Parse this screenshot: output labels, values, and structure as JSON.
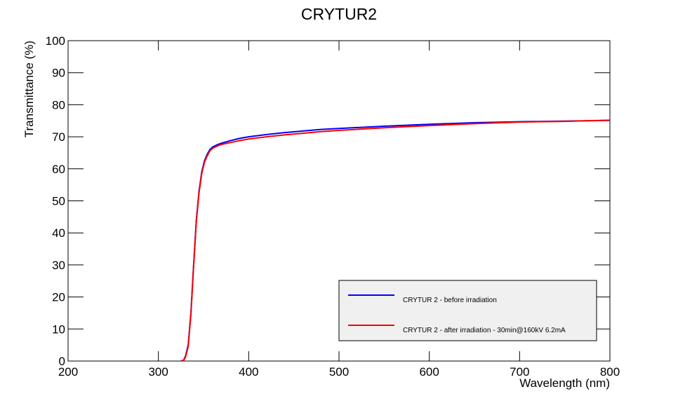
{
  "chart_data": {
    "type": "line",
    "title": "CRYTUR2",
    "x_label": "Wavelength (nm)",
    "y_label": "Transmittance (%)",
    "x": [
      325,
      328,
      330,
      333,
      336,
      339,
      342,
      345,
      348,
      351,
      354,
      357,
      360,
      365,
      370,
      380,
      390,
      400,
      420,
      440,
      460,
      480,
      500,
      550,
      600,
      650,
      700,
      750,
      800
    ],
    "series": [
      {
        "name": "CRYTUR 2 - before irradiation",
        "color": "#0000ff",
        "values": [
          0,
          0.3,
          1.5,
          5,
          15,
          30,
          44,
          53,
          59,
          62.5,
          64.5,
          66,
          66.8,
          67.5,
          68,
          68.8,
          69.5,
          70,
          70.7,
          71.3,
          71.8,
          72.3,
          72.6,
          73.3,
          73.9,
          74.4,
          74.7,
          74.9,
          75.1
        ]
      },
      {
        "name": "CRYTUR 2 - after irradiation - 30min@160kV 6.2mA",
        "color": "#ff0000",
        "values": [
          0,
          0.2,
          1.2,
          4.5,
          14.5,
          29.5,
          43.5,
          52.5,
          58.5,
          62,
          64,
          65.6,
          66.4,
          67.1,
          67.6,
          68.2,
          68.8,
          69.3,
          70,
          70.6,
          71.1,
          71.6,
          72,
          72.8,
          73.5,
          74.1,
          74.6,
          74.8,
          75.2
        ]
      }
    ],
    "xlim": [
      200,
      800
    ],
    "xticks": [
      200,
      300,
      400,
      500,
      600,
      700,
      800
    ],
    "ylim": [
      0,
      100
    ],
    "yticks": [
      0,
      10,
      20,
      30,
      40,
      50,
      60,
      70,
      80,
      90,
      100
    ],
    "grid": false,
    "legend": "lower right"
  }
}
